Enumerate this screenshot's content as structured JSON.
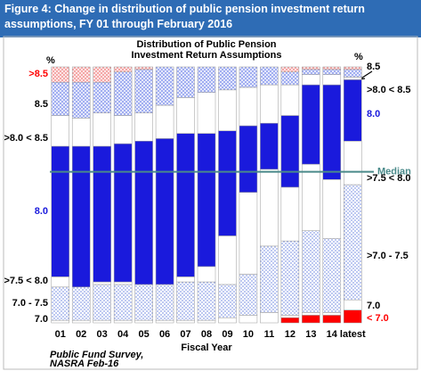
{
  "header": {
    "title": "Figure 4: Change in distribution of public pension investment return assumptions, FY 01 through February 2016"
  },
  "chart_data": {
    "type": "stacked_bar",
    "title": [
      "Distribution of Public Pension",
      "Investment Return Assumptions"
    ],
    "x_label": "Fiscal Year",
    "unit_left": "%",
    "unit_right": "%",
    "source": [
      "Public Fund Survey,",
      "NASRA Feb-16"
    ],
    "categories": [
      "01",
      "02",
      "03",
      "04",
      "05",
      "06",
      "07",
      "08",
      "09",
      "10",
      "11",
      "12",
      "13",
      "14",
      "latest"
    ],
    "ylim": [
      0,
      100
    ],
    "reference_line": {
      "label": "Median",
      "value": 59,
      "color": "#4a8a8a"
    },
    "series": [
      {
        "label_right": "< 7.0",
        "label_color": "#ff0000",
        "color": "#ff0000",
        "pattern": "solid",
        "values": [
          0,
          0,
          0,
          0,
          0,
          0,
          0,
          0,
          0,
          0,
          0,
          2,
          3,
          3,
          5
        ]
      },
      {
        "label_left": "7.0",
        "label_right": "7.0",
        "label_color": "#000000",
        "color": "#ffffff",
        "pattern": "solid",
        "values": [
          1,
          1,
          1,
          1,
          1,
          1,
          1,
          1,
          2,
          3,
          4,
          1,
          1,
          1,
          4
        ]
      },
      {
        "label_left": "7.0 - 7.5",
        "label_right": ">7.0 - 7.5",
        "label_color": "#000000",
        "color": "#c8d4f4",
        "pattern": "dots",
        "values": [
          13,
          13,
          14,
          14,
          14,
          14,
          15,
          15,
          13,
          16,
          26,
          29,
          32,
          29,
          45
        ]
      },
      {
        "label_left": ">7.5 < 8.0",
        "label_right": ">7.5 < 8.0",
        "label_color": "#000000",
        "color": "#ffffff",
        "pattern": "solid",
        "values": [
          4,
          0,
          1,
          1,
          0,
          0,
          2,
          6,
          19,
          32,
          30,
          21,
          26,
          23,
          17
        ]
      },
      {
        "label_left": "8.0",
        "label_right": "8.0",
        "label_color": "#1a1adc",
        "color": "#1a1adc",
        "pattern": "solid",
        "values": [
          51,
          55,
          53,
          54,
          56,
          57,
          56,
          52,
          41,
          26,
          18,
          28,
          31,
          37,
          24
        ]
      },
      {
        "label_left": ">8.0 < 8.5",
        "label_right": ">8.0 < 8.5",
        "label_color": "#000000",
        "color": "#ffffff",
        "pattern": "solid",
        "values": [
          12,
          11,
          13,
          11,
          11,
          13,
          14,
          16,
          16,
          15,
          15,
          12,
          4,
          4,
          1
        ]
      },
      {
        "label_left": "8.5",
        "label_right": "8.5",
        "label_color": "#000000",
        "color": "#9aa8f0",
        "pattern": "cross",
        "values": [
          13,
          14,
          12,
          17,
          17,
          15,
          12,
          10,
          9,
          8,
          7,
          5,
          2,
          2,
          3
        ]
      },
      {
        "label_left": ">8.5",
        "label_color": "#ff0000",
        "color": "#f4a0a0",
        "pattern": "cross",
        "values": [
          6,
          6,
          6,
          2,
          1,
          0,
          0,
          0,
          0,
          0,
          0,
          2,
          1,
          1,
          1
        ]
      }
    ]
  }
}
